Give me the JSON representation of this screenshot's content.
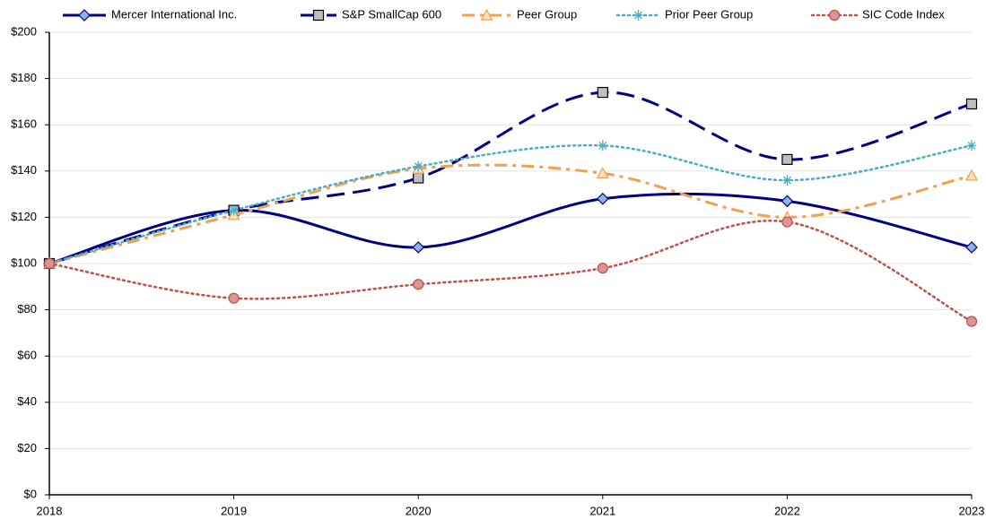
{
  "chart_data": {
    "type": "line",
    "smooth": true,
    "categories": [
      "2018",
      "2019",
      "2020",
      "2021",
      "2022",
      "2023"
    ],
    "ylim": [
      0,
      200
    ],
    "yticks": [
      {
        "value": 0,
        "label": "$0"
      },
      {
        "value": 20,
        "label": "$20"
      },
      {
        "value": 40,
        "label": "$40"
      },
      {
        "value": 60,
        "label": "$60"
      },
      {
        "value": 80,
        "label": "$80"
      },
      {
        "value": 100,
        "label": "$100"
      },
      {
        "value": 120,
        "label": "$120"
      },
      {
        "value": 140,
        "label": "$140"
      },
      {
        "value": 160,
        "label": "$160"
      },
      {
        "value": 180,
        "label": "$180"
      },
      {
        "value": 200,
        "label": "$200"
      }
    ],
    "grid": true,
    "legend": "top",
    "series": [
      {
        "name": "Mercer International Inc.",
        "color": "#000080",
        "line_style": "solid",
        "marker": "diamond",
        "marker_fill": "#8db4e2",
        "values": [
          100,
          123,
          107,
          128,
          127,
          107
        ]
      },
      {
        "name": "S&P SmallCap 600",
        "color": "#000080",
        "line_style": "dashed",
        "marker": "square",
        "marker_fill": "#bfbfbf",
        "values": [
          100,
          123,
          137,
          174,
          145,
          169
        ]
      },
      {
        "name": "Peer Group",
        "color": "#f0a050",
        "line_style": "dashdot",
        "marker": "triangle",
        "marker_fill": "#fbe0c0",
        "values": [
          100,
          121,
          141,
          139,
          120,
          138
        ]
      },
      {
        "name": "Prior Peer Group",
        "color": "#4bacc6",
        "line_style": "dotted",
        "marker": "star",
        "marker_fill": "#4bacc6",
        "values": [
          100,
          123,
          142,
          151,
          136,
          151
        ]
      },
      {
        "name": "SIC Code Index",
        "color": "#c0504d",
        "line_style": "dotted",
        "marker": "circle",
        "marker_fill": "#d99694",
        "values": [
          100,
          85,
          91,
          98,
          118,
          75
        ]
      }
    ]
  }
}
